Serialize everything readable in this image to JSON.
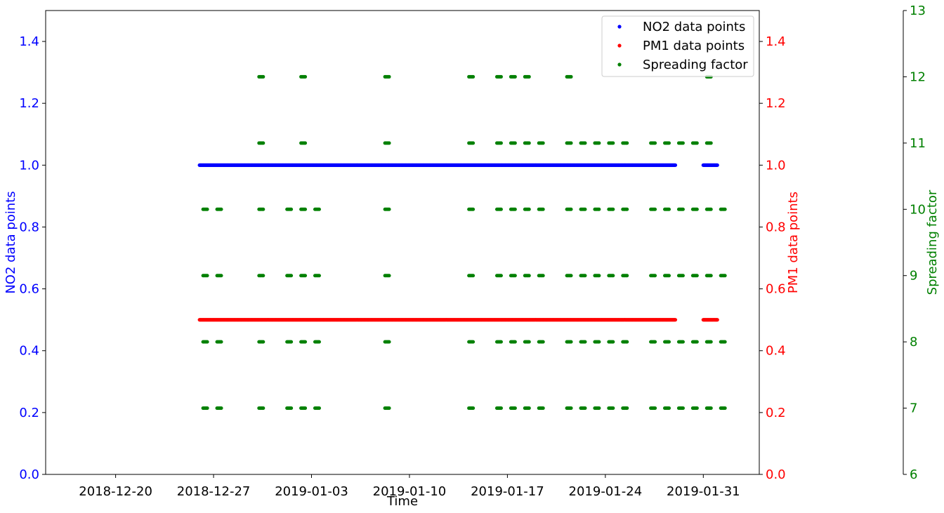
{
  "chart_data": {
    "type": "scatter",
    "grid": false,
    "legend_placement": "top-right",
    "x_axis": {
      "label": "Time",
      "range": [
        "2018-12-15",
        "2019-02-04"
      ],
      "ticks": [
        "2018-12-20",
        "2018-12-27",
        "2019-01-03",
        "2019-01-10",
        "2019-01-17",
        "2019-01-24",
        "2019-01-31"
      ]
    },
    "axes": {
      "left": {
        "label": "NO2 data points",
        "color": "#0000ff",
        "range": [
          0,
          1.5
        ],
        "ticks": [
          "0.0",
          "0.2",
          "0.4",
          "0.6",
          "0.8",
          "1.0",
          "1.2",
          "1.4"
        ]
      },
      "right": {
        "label": "PM1 data points",
        "color": "#ff0000",
        "range": [
          0,
          1.5
        ],
        "ticks": [
          "0.0",
          "0.2",
          "0.4",
          "0.6",
          "0.8",
          "1.0",
          "1.2",
          "1.4"
        ]
      },
      "outer": {
        "label": "Spreading factor",
        "color": "#008000",
        "range": [
          6,
          13
        ],
        "ticks": [
          "6",
          "7",
          "8",
          "9",
          "10",
          "11",
          "12",
          "13"
        ]
      }
    },
    "legend": [
      {
        "name": "NO2 data points",
        "color": "#0000ff"
      },
      {
        "name": "PM1 data points",
        "color": "#ff0000"
      },
      {
        "name": "Spreading factor",
        "color": "#008000"
      }
    ],
    "series": [
      {
        "name": "NO2 data points",
        "axis": "left",
        "color": "#0000ff",
        "segments": [
          {
            "start": "2018-12-26",
            "end": "2019-01-29",
            "y": 1.0
          },
          {
            "start": "2019-01-31",
            "end": "2019-02-01",
            "y": 1.0
          }
        ]
      },
      {
        "name": "PM1 data points",
        "axis": "right",
        "color": "#ff0000",
        "segments": [
          {
            "start": "2018-12-26",
            "end": "2019-01-29",
            "y": 0.5
          },
          {
            "start": "2019-01-31",
            "end": "2019-02-01",
            "y": 0.5
          }
        ]
      },
      {
        "name": "Spreading factor",
        "axis": "outer",
        "color": "#008000",
        "levels": [
          {
            "y": 7,
            "dates": [
              "2018-12-26",
              "2018-12-27",
              "2018-12-30",
              "2019-01-01",
              "2019-01-02",
              "2019-01-03",
              "2019-01-08",
              "2019-01-14",
              "2019-01-16",
              "2019-01-17",
              "2019-01-18",
              "2019-01-19",
              "2019-01-21",
              "2019-01-22",
              "2019-01-23",
              "2019-01-24",
              "2019-01-25",
              "2019-01-27",
              "2019-01-28",
              "2019-01-29",
              "2019-01-30",
              "2019-01-31",
              "2019-02-01"
            ]
          },
          {
            "y": 8,
            "dates": [
              "2018-12-26",
              "2018-12-27",
              "2018-12-30",
              "2019-01-01",
              "2019-01-02",
              "2019-01-03",
              "2019-01-08",
              "2019-01-14",
              "2019-01-16",
              "2019-01-17",
              "2019-01-18",
              "2019-01-19",
              "2019-01-21",
              "2019-01-22",
              "2019-01-23",
              "2019-01-24",
              "2019-01-25",
              "2019-01-27",
              "2019-01-28",
              "2019-01-29",
              "2019-01-30",
              "2019-01-31",
              "2019-02-01"
            ]
          },
          {
            "y": 9,
            "dates": [
              "2018-12-26",
              "2018-12-27",
              "2018-12-30",
              "2019-01-01",
              "2019-01-02",
              "2019-01-03",
              "2019-01-08",
              "2019-01-14",
              "2019-01-16",
              "2019-01-17",
              "2019-01-18",
              "2019-01-19",
              "2019-01-21",
              "2019-01-22",
              "2019-01-23",
              "2019-01-24",
              "2019-01-25",
              "2019-01-27",
              "2019-01-28",
              "2019-01-29",
              "2019-01-30",
              "2019-01-31",
              "2019-02-01"
            ]
          },
          {
            "y": 10,
            "dates": [
              "2018-12-26",
              "2018-12-27",
              "2018-12-30",
              "2019-01-01",
              "2019-01-02",
              "2019-01-03",
              "2019-01-08",
              "2019-01-14",
              "2019-01-16",
              "2019-01-17",
              "2019-01-18",
              "2019-01-19",
              "2019-01-21",
              "2019-01-22",
              "2019-01-23",
              "2019-01-24",
              "2019-01-25",
              "2019-01-27",
              "2019-01-28",
              "2019-01-29",
              "2019-01-30",
              "2019-01-31",
              "2019-02-01"
            ]
          },
          {
            "y": 11,
            "dates": [
              "2018-12-30",
              "2019-01-02",
              "2019-01-08",
              "2019-01-14",
              "2019-01-16",
              "2019-01-17",
              "2019-01-18",
              "2019-01-19",
              "2019-01-21",
              "2019-01-22",
              "2019-01-23",
              "2019-01-24",
              "2019-01-25",
              "2019-01-27",
              "2019-01-28",
              "2019-01-29",
              "2019-01-30",
              "2019-01-31"
            ]
          },
          {
            "y": 12,
            "dates": [
              "2018-12-30",
              "2019-01-02",
              "2019-01-08",
              "2019-01-14",
              "2019-01-16",
              "2019-01-17",
              "2019-01-18",
              "2019-01-21",
              "2019-01-31"
            ]
          }
        ]
      }
    ]
  }
}
